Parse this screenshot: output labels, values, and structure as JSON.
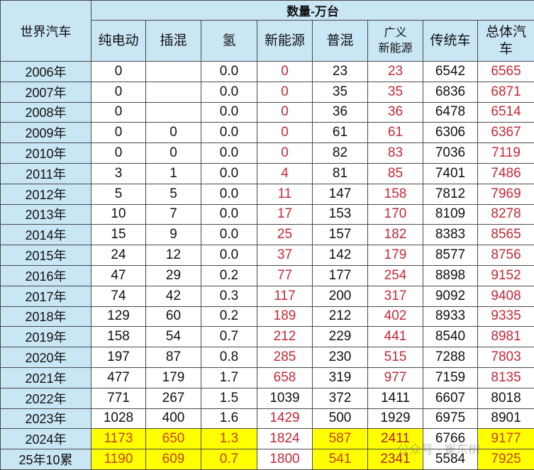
{
  "header": {
    "row_label": "世界汽车",
    "group_label": "数量-万台",
    "columns": [
      "纯电动",
      "插混",
      "氢",
      "新能源",
      "普混",
      "广义\n新能源",
      "传统车",
      "总体汽车"
    ]
  },
  "colors": {
    "header_bg": "#c9e6f5",
    "highlight": "#ffff00",
    "red_text": "#c42838",
    "orange_text": "#c8400c"
  },
  "rows": [
    {
      "year": "2006年",
      "cells": [
        {
          "v": "0"
        },
        {
          "v": ""
        },
        {
          "v": "0.0"
        },
        {
          "v": "0",
          "c": "red"
        },
        {
          "v": "23"
        },
        {
          "v": "23",
          "c": "red"
        },
        {
          "v": "6542"
        },
        {
          "v": "6565",
          "c": "red"
        }
      ]
    },
    {
      "year": "2007年",
      "cells": [
        {
          "v": "0"
        },
        {
          "v": ""
        },
        {
          "v": "0.0"
        },
        {
          "v": "0",
          "c": "red"
        },
        {
          "v": "35"
        },
        {
          "v": "35",
          "c": "red"
        },
        {
          "v": "6836"
        },
        {
          "v": "6871",
          "c": "red"
        }
      ]
    },
    {
      "year": "2008年",
      "cells": [
        {
          "v": "0"
        },
        {
          "v": ""
        },
        {
          "v": "0.0"
        },
        {
          "v": "0",
          "c": "red"
        },
        {
          "v": "36"
        },
        {
          "v": "36",
          "c": "red"
        },
        {
          "v": "6478"
        },
        {
          "v": "6514",
          "c": "red"
        }
      ]
    },
    {
      "year": "2009年",
      "cells": [
        {
          "v": "0"
        },
        {
          "v": "0"
        },
        {
          "v": "0.0"
        },
        {
          "v": "0",
          "c": "red"
        },
        {
          "v": "61"
        },
        {
          "v": "61",
          "c": "red"
        },
        {
          "v": "6306"
        },
        {
          "v": "6367",
          "c": "red"
        }
      ]
    },
    {
      "year": "2010年",
      "cells": [
        {
          "v": "0"
        },
        {
          "v": "0"
        },
        {
          "v": "0.0"
        },
        {
          "v": "0",
          "c": "red"
        },
        {
          "v": "82"
        },
        {
          "v": "83",
          "c": "red"
        },
        {
          "v": "7036"
        },
        {
          "v": "7119",
          "c": "red"
        }
      ]
    },
    {
      "year": "2011年",
      "cells": [
        {
          "v": "3"
        },
        {
          "v": "1"
        },
        {
          "v": "0.0"
        },
        {
          "v": "4",
          "c": "red"
        },
        {
          "v": "81"
        },
        {
          "v": "85",
          "c": "red"
        },
        {
          "v": "7401"
        },
        {
          "v": "7486",
          "c": "red"
        }
      ]
    },
    {
      "year": "2012年",
      "cells": [
        {
          "v": "5"
        },
        {
          "v": "5"
        },
        {
          "v": "0.0"
        },
        {
          "v": "11",
          "c": "red"
        },
        {
          "v": "147"
        },
        {
          "v": "158",
          "c": "red"
        },
        {
          "v": "7812"
        },
        {
          "v": "7969",
          "c": "red"
        }
      ]
    },
    {
      "year": "2013年",
      "cells": [
        {
          "v": "10"
        },
        {
          "v": "7"
        },
        {
          "v": "0.0"
        },
        {
          "v": "17",
          "c": "red"
        },
        {
          "v": "153"
        },
        {
          "v": "170",
          "c": "red"
        },
        {
          "v": "8109"
        },
        {
          "v": "8278",
          "c": "red"
        }
      ]
    },
    {
      "year": "2014年",
      "cells": [
        {
          "v": "15"
        },
        {
          "v": "9"
        },
        {
          "v": "0.0"
        },
        {
          "v": "25",
          "c": "red"
        },
        {
          "v": "157"
        },
        {
          "v": "182",
          "c": "red"
        },
        {
          "v": "8383"
        },
        {
          "v": "8565",
          "c": "red"
        }
      ]
    },
    {
      "year": "2015年",
      "cells": [
        {
          "v": "24"
        },
        {
          "v": "12"
        },
        {
          "v": "0.0"
        },
        {
          "v": "37",
          "c": "red"
        },
        {
          "v": "142"
        },
        {
          "v": "179",
          "c": "red"
        },
        {
          "v": "8577"
        },
        {
          "v": "8756",
          "c": "red"
        }
      ]
    },
    {
      "year": "2016年",
      "cells": [
        {
          "v": "47"
        },
        {
          "v": "29"
        },
        {
          "v": "0.2"
        },
        {
          "v": "77",
          "c": "red"
        },
        {
          "v": "177"
        },
        {
          "v": "254",
          "c": "red"
        },
        {
          "v": "8898"
        },
        {
          "v": "9152",
          "c": "red"
        }
      ]
    },
    {
      "year": "2017年",
      "cells": [
        {
          "v": "74"
        },
        {
          "v": "42"
        },
        {
          "v": "0.3"
        },
        {
          "v": "117",
          "c": "red"
        },
        {
          "v": "200"
        },
        {
          "v": "317",
          "c": "red"
        },
        {
          "v": "9092"
        },
        {
          "v": "9408",
          "c": "red"
        }
      ]
    },
    {
      "year": "2018年",
      "cells": [
        {
          "v": "129"
        },
        {
          "v": "60"
        },
        {
          "v": "0.2"
        },
        {
          "v": "189",
          "c": "red"
        },
        {
          "v": "212"
        },
        {
          "v": "402",
          "c": "red"
        },
        {
          "v": "8933"
        },
        {
          "v": "9335",
          "c": "red"
        }
      ]
    },
    {
      "year": "2019年",
      "cells": [
        {
          "v": "158"
        },
        {
          "v": "54"
        },
        {
          "v": "0.7"
        },
        {
          "v": "212",
          "c": "red"
        },
        {
          "v": "229"
        },
        {
          "v": "441",
          "c": "red"
        },
        {
          "v": "8540"
        },
        {
          "v": "8981",
          "c": "red"
        }
      ]
    },
    {
      "year": "2020年",
      "cells": [
        {
          "v": "197"
        },
        {
          "v": "87"
        },
        {
          "v": "0.8"
        },
        {
          "v": "285",
          "c": "red"
        },
        {
          "v": "230"
        },
        {
          "v": "515",
          "c": "red"
        },
        {
          "v": "7288"
        },
        {
          "v": "7803",
          "c": "red"
        }
      ]
    },
    {
      "year": "2021年",
      "cells": [
        {
          "v": "477"
        },
        {
          "v": "179"
        },
        {
          "v": "1.7"
        },
        {
          "v": "658",
          "c": "red"
        },
        {
          "v": "319"
        },
        {
          "v": "977",
          "c": "red"
        },
        {
          "v": "7159"
        },
        {
          "v": "8135",
          "c": "red"
        }
      ]
    },
    {
      "year": "2022年",
      "cells": [
        {
          "v": "771"
        },
        {
          "v": "267"
        },
        {
          "v": "1.5"
        },
        {
          "v": "1039"
        },
        {
          "v": "372"
        },
        {
          "v": "1411"
        },
        {
          "v": "6607"
        },
        {
          "v": "8018"
        }
      ]
    },
    {
      "year": "2023年",
      "cells": [
        {
          "v": "1028"
        },
        {
          "v": "400"
        },
        {
          "v": "1.6"
        },
        {
          "v": "1429",
          "c": "red"
        },
        {
          "v": "500"
        },
        {
          "v": "1929"
        },
        {
          "v": "6975"
        },
        {
          "v": "8901"
        }
      ]
    },
    {
      "year": "2024年",
      "cells": [
        {
          "v": "1173",
          "c": "hl-orange"
        },
        {
          "v": "650",
          "c": "hl-orange"
        },
        {
          "v": "1.3",
          "c": "hl-orange"
        },
        {
          "v": "1824",
          "c": "red"
        },
        {
          "v": "587",
          "c": "hl-orange"
        },
        {
          "v": "2411",
          "c": "hl-red"
        },
        {
          "v": "6766"
        },
        {
          "v": "9177",
          "c": "hl-orange"
        }
      ]
    },
    {
      "year": "25年10累",
      "cells": [
        {
          "v": "1190",
          "c": "hl-orange"
        },
        {
          "v": "609",
          "c": "hl-orange"
        },
        {
          "v": "0.7",
          "c": "hl-orange"
        },
        {
          "v": "1800",
          "c": "red"
        },
        {
          "v": "541",
          "c": "hl-orange"
        },
        {
          "v": "2341",
          "c": "hl-red"
        },
        {
          "v": "5584"
        },
        {
          "v": "7925",
          "c": "hl-orange"
        }
      ]
    }
  ],
  "watermark": "公众号 · 崔东树"
}
